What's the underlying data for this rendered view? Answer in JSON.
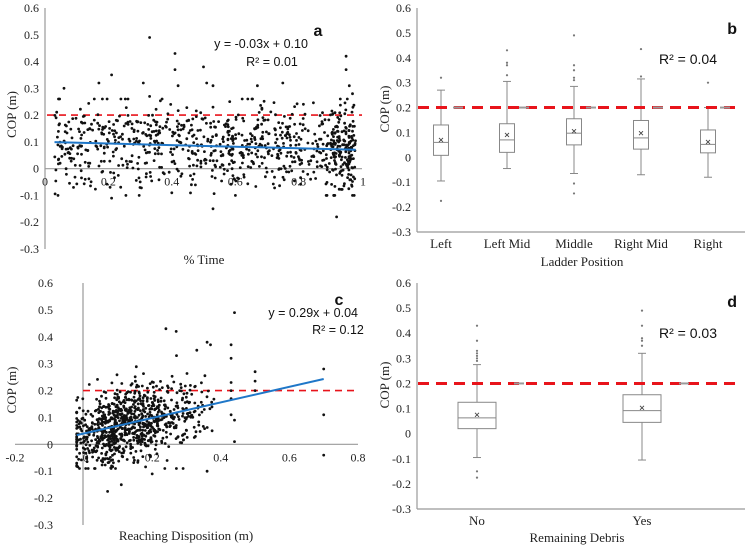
{
  "figure_title": "",
  "threshold": {
    "value": 0.2,
    "color": "#e8141b",
    "style": "dashed"
  },
  "colors": {
    "trend": "#1f77c8",
    "points": "#111111",
    "axis": "#999999",
    "box": "#888888"
  },
  "chart_data": [
    {
      "id": "a",
      "type": "scatter",
      "panel_label": "a",
      "title": "",
      "xlabel": "% Time",
      "ylabel": "COP (m)",
      "xlim": [
        0,
        1
      ],
      "ylim": [
        -0.3,
        0.6
      ],
      "xticks": [
        "0",
        "0.2",
        "0.4",
        "0.6",
        "0.8",
        "1"
      ],
      "xtick_values": [
        0,
        0.2,
        0.4,
        0.6,
        0.8,
        1
      ],
      "yticks": [
        "-0.3",
        "-0.2",
        "-0.1",
        "0",
        "0.1",
        "0.2",
        "0.3",
        "0.4",
        "0.5",
        "0.6"
      ],
      "ytick_values": [
        -0.3,
        -0.2,
        -0.1,
        0,
        0.1,
        0.2,
        0.3,
        0.4,
        0.5,
        0.6
      ],
      "equation": "y = -0.03x + 0.10",
      "r2": "R² = 0.01",
      "trend": {
        "slope": -0.03,
        "intercept": 0.1,
        "x_range": [
          0.03,
          0.98
        ]
      },
      "threshold": 0.2,
      "n_points_approx": 900,
      "distribution": {
        "x_range": [
          0.03,
          0.98
        ],
        "y_center": 0.09,
        "y_spread": 0.075
      },
      "notable_points": [
        [
          0.33,
          0.49
        ],
        [
          0.41,
          0.43
        ],
        [
          0.95,
          0.42
        ],
        [
          0.41,
          0.37
        ],
        [
          0.95,
          0.37
        ],
        [
          0.21,
          0.35
        ],
        [
          0.5,
          0.38
        ],
        [
          0.17,
          0.32
        ],
        [
          0.31,
          0.32
        ],
        [
          0.42,
          0.31
        ],
        [
          0.51,
          0.32
        ],
        [
          0.75,
          0.32
        ],
        [
          0.67,
          0.31
        ],
        [
          0.96,
          0.31
        ],
        [
          0.06,
          0.3
        ],
        [
          0.53,
          0.31
        ],
        [
          0.33,
          0.27
        ],
        [
          0.97,
          0.28
        ],
        [
          0.21,
          -0.11
        ],
        [
          0.4,
          -0.09
        ],
        [
          0.53,
          -0.15
        ],
        [
          0.92,
          -0.18
        ],
        [
          0.97,
          -0.1
        ],
        [
          0.09,
          -0.07
        ]
      ]
    },
    {
      "id": "b",
      "type": "box",
      "panel_label": "b",
      "title": "",
      "xlabel": "Ladder Position",
      "ylabel": "COP (m)",
      "ylim": [
        -0.3,
        0.6
      ],
      "yticks": [
        "-0.3",
        "-0.2",
        "-0.1",
        "0",
        "0.1",
        "0.2",
        "0.3",
        "0.4",
        "0.5",
        "0.6"
      ],
      "ytick_values": [
        -0.3,
        -0.2,
        -0.1,
        0,
        0.1,
        0.2,
        0.3,
        0.4,
        0.5,
        0.6
      ],
      "r2": "R² = 0.04",
      "threshold": 0.2,
      "categories": [
        "Left",
        "Left Mid",
        "Middle",
        "Right Mid",
        "Right"
      ],
      "boxes": [
        {
          "category": "Left",
          "whisker_low": -0.095,
          "q1": 0.008,
          "median": 0.06,
          "q3": 0.13,
          "whisker_high": 0.27,
          "mean": 0.07,
          "outliers": [
            0.32,
            -0.175
          ]
        },
        {
          "category": "Left Mid",
          "whisker_low": -0.045,
          "q1": 0.02,
          "median": 0.07,
          "q3": 0.135,
          "whisker_high": 0.305,
          "mean": 0.09,
          "outliers": [
            0.33,
            0.37,
            0.38,
            0.43
          ]
        },
        {
          "category": "Middle",
          "whisker_low": -0.065,
          "q1": 0.05,
          "median": 0.097,
          "q3": 0.155,
          "whisker_high": 0.285,
          "mean": 0.105,
          "outliers": [
            0.31,
            0.32,
            0.35,
            0.37,
            0.49,
            -0.105,
            -0.145
          ]
        },
        {
          "category": "Right Mid",
          "whisker_low": -0.07,
          "q1": 0.033,
          "median": 0.078,
          "q3": 0.148,
          "whisker_high": 0.315,
          "mean": 0.097,
          "outliers": [
            0.325,
            0.435
          ]
        },
        {
          "category": "Right",
          "whisker_low": -0.08,
          "q1": 0.018,
          "median": 0.052,
          "q3": 0.11,
          "whisker_high": 0.2,
          "mean": 0.062,
          "outliers": [
            0.3
          ]
        }
      ]
    },
    {
      "id": "c",
      "type": "scatter",
      "panel_label": "c",
      "title": "",
      "xlabel": "Reaching Disposition (m)",
      "ylabel": "COP (m)",
      "xlim": [
        -0.2,
        0.8
      ],
      "ylim": [
        -0.3,
        0.6
      ],
      "xticks": [
        "-0.2",
        "0",
        "0.2",
        "0.4",
        "0.6",
        "0.8"
      ],
      "xtick_values": [
        -0.2,
        0,
        0.2,
        0.4,
        0.6,
        0.8
      ],
      "yticks": [
        "-0.3",
        "-0.2",
        "-0.1",
        "0",
        "0.1",
        "0.2",
        "0.3",
        "0.4",
        "0.5",
        "0.6"
      ],
      "ytick_values": [
        -0.3,
        -0.2,
        -0.1,
        0,
        0.1,
        0.2,
        0.3,
        0.4,
        0.5,
        0.6
      ],
      "equation": "y = 0.29x + 0.04",
      "r2": "R² = 0.12",
      "trend": {
        "slope": 0.29,
        "intercept": 0.04,
        "x_range": [
          -0.02,
          0.7
        ]
      },
      "threshold": 0.2,
      "n_points_approx": 900,
      "distribution": {
        "x_range": [
          -0.02,
          0.38
        ],
        "x_mode": 0.12,
        "y_center": 0.07,
        "y_spread": 0.07
      },
      "notable_points": [
        [
          0.43,
          0.37
        ],
        [
          0.43,
          0.32
        ],
        [
          0.43,
          0.23
        ],
        [
          0.43,
          0.2
        ],
        [
          0.43,
          0.17
        ],
        [
          0.43,
          0.11
        ],
        [
          0.44,
          0.49
        ],
        [
          0.44,
          0.09
        ],
        [
          0.44,
          0.01
        ],
        [
          0.5,
          0.27
        ],
        [
          0.5,
          0.235
        ],
        [
          0.5,
          0.2
        ],
        [
          0.7,
          0.28
        ],
        [
          0.7,
          0.11
        ],
        [
          0.7,
          -0.04
        ],
        [
          0.24,
          0.43
        ],
        [
          0.27,
          0.42
        ],
        [
          0.36,
          0.38
        ],
        [
          0.37,
          0.37
        ],
        [
          0.33,
          0.35
        ],
        [
          0.07,
          -0.175
        ],
        [
          0.11,
          -0.15
        ],
        [
          0.2,
          -0.11
        ],
        [
          0.36,
          -0.1
        ],
        [
          0.29,
          -0.09
        ],
        [
          -0.02,
          -0.07
        ],
        [
          -0.02,
          0.07
        ]
      ]
    },
    {
      "id": "d",
      "type": "box",
      "panel_label": "d",
      "title": "",
      "xlabel": "Remaining Debris",
      "ylabel": "COP (m)",
      "ylim": [
        -0.3,
        0.6
      ],
      "yticks": [
        "-0.3",
        "-0.2",
        "-0.1",
        "0",
        "0.1",
        "0.2",
        "0.3",
        "0.4",
        "0.5",
        "0.6"
      ],
      "ytick_values": [
        -0.3,
        -0.2,
        -0.1,
        0,
        0.1,
        0.2,
        0.3,
        0.4,
        0.5,
        0.6
      ],
      "r2": "R² = 0.03",
      "threshold": 0.2,
      "categories": [
        "No",
        "Yes"
      ],
      "boxes": [
        {
          "category": "No",
          "whisker_low": -0.095,
          "q1": 0.02,
          "median": 0.063,
          "q3": 0.125,
          "whisker_high": 0.275,
          "mean": 0.075,
          "outliers": [
            0.43,
            0.37,
            0.33,
            0.32,
            0.31,
            0.3,
            0.29,
            -0.15,
            -0.175
          ]
        },
        {
          "category": "Yes",
          "whisker_low": -0.105,
          "q1": 0.045,
          "median": 0.092,
          "q3": 0.155,
          "whisker_high": 0.32,
          "mean": 0.103,
          "outliers": [
            0.49,
            0.43,
            0.38,
            0.37,
            0.35
          ]
        }
      ]
    }
  ]
}
